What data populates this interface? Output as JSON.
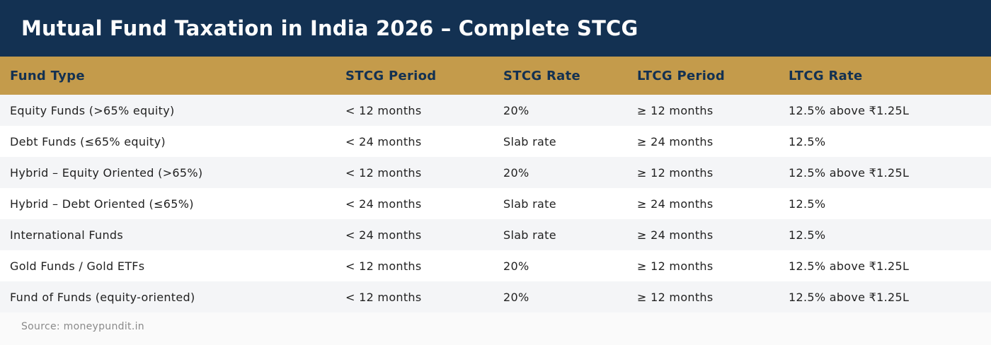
{
  "title": "Mutual Fund Taxation in India 2026 – Complete STCG",
  "table": {
    "headers": [
      "Fund Type",
      "STCG Period",
      "STCG Rate",
      "LTCG Period",
      "LTCG Rate"
    ],
    "rows": [
      [
        "Equity Funds (>65% equity)",
        "< 12 months",
        "20%",
        "≥ 12 months",
        "12.5% above ₹1.25L"
      ],
      [
        "Debt Funds (≤65% equity)",
        "< 24 months",
        "Slab rate",
        "≥ 24 months",
        "12.5%"
      ],
      [
        "Hybrid – Equity Oriented (>65%)",
        "< 12 months",
        "20%",
        "≥ 12 months",
        "12.5% above ₹1.25L"
      ],
      [
        "Hybrid – Debt Oriented (≤65%)",
        "< 24 months",
        "Slab rate",
        "≥ 24 months",
        "12.5%"
      ],
      [
        "International Funds",
        "< 24 months",
        "Slab rate",
        "≥ 24 months",
        "12.5%"
      ],
      [
        "Gold Funds / Gold ETFs",
        "< 12 months",
        "20%",
        "≥ 12 months",
        "12.5% above ₹1.25L"
      ],
      [
        "Fund of Funds (equity-oriented)",
        "< 12 months",
        "20%",
        "≥ 12 months",
        "12.5% above ₹1.25L"
      ]
    ]
  },
  "source": "Source: moneypundit.in",
  "colors": {
    "header_bg": "#133152",
    "table_header_bg": "#c49b4b",
    "table_header_text": "#133152",
    "row_alt_bg": "#f4f5f7"
  }
}
